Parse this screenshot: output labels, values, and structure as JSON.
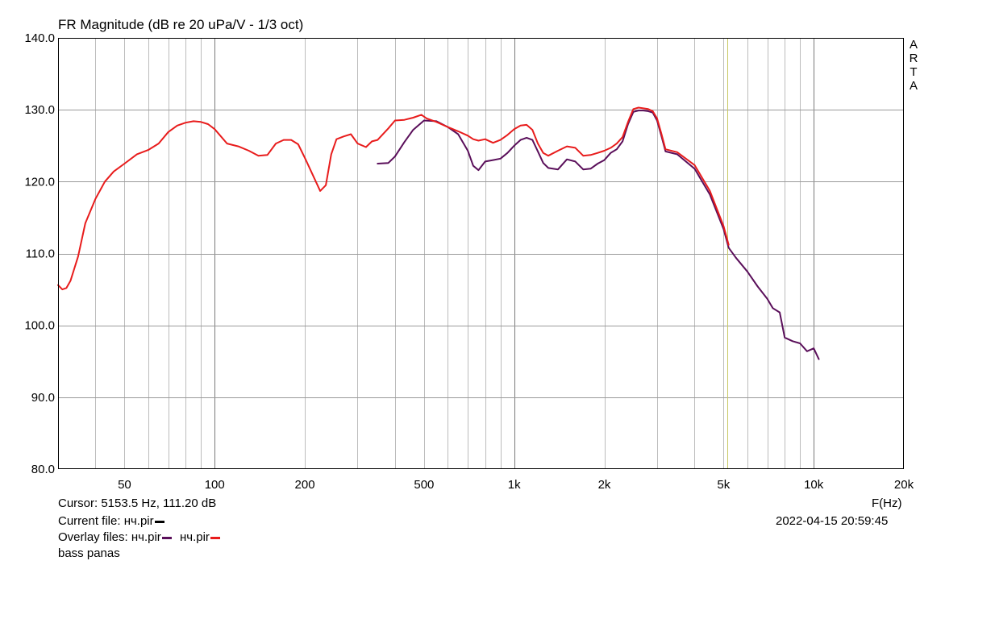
{
  "chart_data": {
    "type": "line",
    "title": "FR Magnitude (dB re 20 uPa/V - 1/3 oct)",
    "watermark": "ARTA",
    "xlabel": "F(Hz)",
    "ylabel": "",
    "xscale": "log",
    "xlim": [
      30,
      20000
    ],
    "ylim": [
      80,
      140
    ],
    "grid": true,
    "y_ticks": [
      "140.0",
      "130.0",
      "120.0",
      "110.0",
      "100.0",
      "90.0",
      "80.0"
    ],
    "y_tick_values": [
      140,
      130,
      120,
      110,
      100,
      90,
      80
    ],
    "x_ticks": [
      "50",
      "100",
      "200",
      "500",
      "1k",
      "2k",
      "5k",
      "10k",
      "20k"
    ],
    "x_tick_values": [
      50,
      100,
      200,
      500,
      1000,
      2000,
      5000,
      10000,
      20000
    ],
    "x_minor_gridlines": [
      40,
      60,
      70,
      80,
      90,
      300,
      400,
      600,
      700,
      800,
      900,
      3000,
      4000,
      6000,
      7000,
      8000,
      9000
    ],
    "cursor": {
      "frequency_hz": 5153.5,
      "level_db": 111.2,
      "color": "#c8c864"
    },
    "series": [
      {
        "name": "нч.pir",
        "color": "#5a0f5a",
        "x": [
          350,
          380,
          400,
          430,
          460,
          500,
          550,
          600,
          650,
          700,
          730,
          760,
          800,
          850,
          900,
          950,
          1000,
          1050,
          1100,
          1150,
          1200,
          1250,
          1300,
          1400,
          1500,
          1600,
          1700,
          1800,
          1900,
          2000,
          2100,
          2200,
          2300,
          2400,
          2500,
          2600,
          2700,
          2800,
          2900,
          3000,
          3100,
          3200,
          3500,
          4000,
          4500,
          5000,
          5200,
          5500,
          6000,
          6500,
          7000,
          7300,
          7700,
          8000,
          8500,
          9000,
          9500,
          10000,
          10400
        ],
        "y": [
          122.5,
          122.6,
          123.5,
          125.5,
          127.2,
          128.5,
          128.4,
          127.6,
          126.6,
          124.3,
          122.2,
          121.6,
          122.8,
          123.0,
          123.2,
          124.0,
          125.0,
          125.8,
          126.1,
          125.8,
          124.2,
          122.6,
          121.9,
          121.7,
          123.1,
          122.8,
          121.7,
          121.8,
          122.5,
          123.0,
          124.0,
          124.5,
          125.6,
          128.0,
          129.7,
          129.9,
          129.9,
          129.8,
          129.6,
          128.5,
          126.4,
          124.2,
          123.8,
          121.8,
          118.2,
          113.4,
          110.8,
          109.4,
          107.5,
          105.4,
          103.7,
          102.4,
          101.8,
          98.3,
          97.8,
          97.5,
          96.4,
          96.8,
          95.3
        ]
      },
      {
        "name": "нч.pir",
        "color": "#e81c1c",
        "x": [
          30,
          31,
          32,
          33,
          35,
          37,
          40,
          43,
          46,
          50,
          55,
          60,
          65,
          70,
          75,
          80,
          85,
          90,
          95,
          100,
          110,
          120,
          130,
          140,
          150,
          160,
          170,
          180,
          190,
          200,
          215,
          225,
          235,
          245,
          255,
          270,
          285,
          300,
          320,
          335,
          350,
          380,
          400,
          430,
          460,
          490,
          510,
          550,
          600,
          650,
          700,
          730,
          760,
          800,
          850,
          900,
          950,
          1000,
          1050,
          1100,
          1150,
          1200,
          1250,
          1300,
          1400,
          1500,
          1600,
          1700,
          1800,
          1900,
          2000,
          2100,
          2200,
          2300,
          2400,
          2500,
          2600,
          2700,
          2800,
          2900,
          3000,
          3100,
          3200,
          3500,
          4000,
          4500,
          5000,
          5200
        ],
        "y": [
          105.6,
          105.0,
          105.2,
          106.2,
          109.6,
          114.2,
          117.6,
          120.0,
          121.4,
          122.5,
          123.8,
          124.4,
          125.3,
          126.9,
          127.8,
          128.2,
          128.4,
          128.3,
          128.0,
          127.3,
          125.3,
          124.9,
          124.3,
          123.6,
          123.7,
          125.3,
          125.8,
          125.8,
          125.2,
          123.3,
          120.5,
          118.7,
          119.5,
          123.8,
          125.9,
          126.3,
          126.6,
          125.3,
          124.8,
          125.6,
          125.8,
          127.4,
          128.5,
          128.6,
          128.9,
          129.3,
          128.8,
          128.3,
          127.6,
          127.0,
          126.4,
          125.9,
          125.7,
          125.9,
          125.4,
          125.8,
          126.5,
          127.3,
          127.8,
          127.9,
          127.2,
          125.3,
          124.0,
          123.6,
          124.3,
          124.9,
          124.7,
          123.6,
          123.7,
          124.0,
          124.3,
          124.7,
          125.3,
          126.2,
          128.3,
          130.1,
          130.3,
          130.2,
          130.1,
          129.8,
          128.8,
          126.7,
          124.5,
          124.1,
          122.3,
          118.7,
          113.8,
          111.2
        ]
      }
    ]
  },
  "info": {
    "cursor_text": "Cursor: 5153.5 Hz, 111.20 dB",
    "current_file_label": "Current file: нч.pir",
    "current_file_color": "#000000",
    "overlay_label": "Overlay files: нч.pir",
    "overlay_second_name": "нч.pir",
    "overlay_colors": [
      "#5a0f5a",
      "#e81c1c"
    ],
    "comment": "bass panas",
    "timestamp": "2022-04-15  20:59:45"
  }
}
